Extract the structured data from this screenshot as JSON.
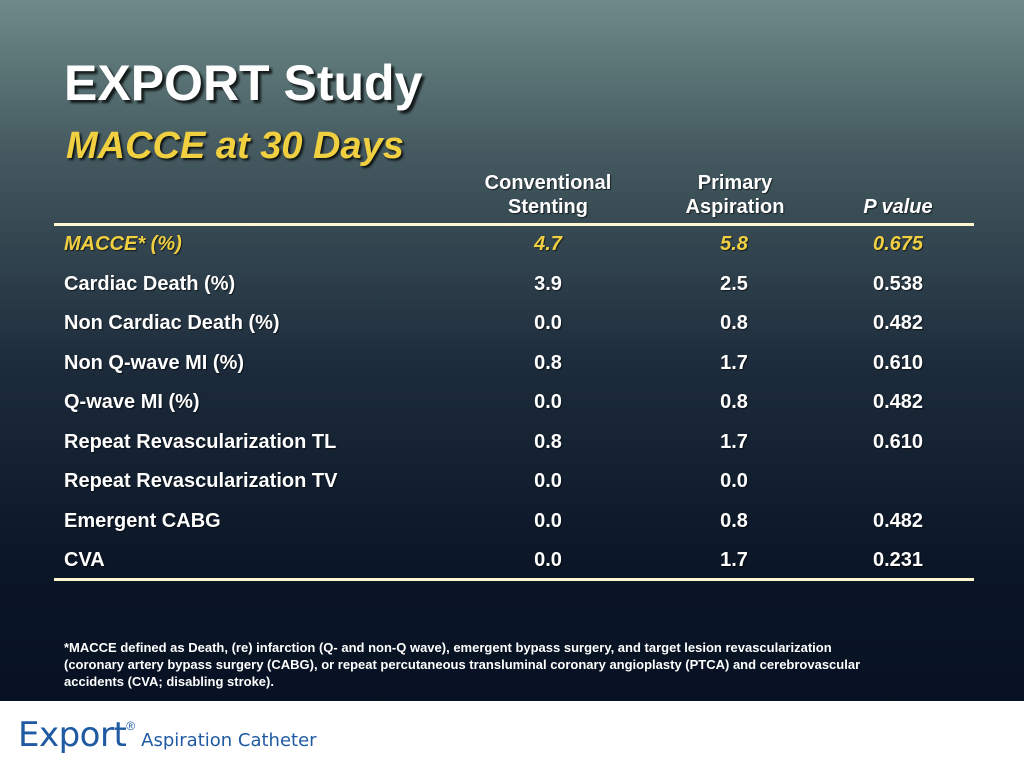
{
  "slide": {
    "title": "EXPORT Study",
    "subtitle": "MACCE at 30 Days"
  },
  "table": {
    "headers": {
      "conventional_line1": "Conventional",
      "conventional_line2": "Stenting",
      "aspiration_line1": "Primary",
      "aspiration_line2": "Aspiration",
      "pvalue": "P value"
    },
    "rows": [
      {
        "label": "MACCE* (%)",
        "conventional": "4.7",
        "aspiration": "5.8",
        "p": "0.675"
      },
      {
        "label": "Cardiac Death (%)",
        "conventional": "3.9",
        "aspiration": "2.5",
        "p": "0.538"
      },
      {
        "label": "Non Cardiac Death (%)",
        "conventional": "0.0",
        "aspiration": "0.8",
        "p": "0.482"
      },
      {
        "label": "Non Q-wave MI (%)",
        "conventional": "0.8",
        "aspiration": "1.7",
        "p": "0.610"
      },
      {
        "label": "Q-wave MI (%)",
        "conventional": "0.0",
        "aspiration": "0.8",
        "p": "0.482"
      },
      {
        "label": "Repeat Revascularization TL",
        "conventional": "0.8",
        "aspiration": "1.7",
        "p": "0.610"
      },
      {
        "label": "Repeat Revascularization TV",
        "conventional": "0.0",
        "aspiration": "0.0",
        "p": ""
      },
      {
        "label": "Emergent CABG",
        "conventional": "0.0",
        "aspiration": "0.8",
        "p": "0.482"
      },
      {
        "label": "CVA",
        "conventional": "0.0",
        "aspiration": "1.7",
        "p": "0.231"
      }
    ]
  },
  "footnote": {
    "line1": "*MACCE defined as Death, (re) infarction (Q- and non-Q wave), emergent bypass surgery, and target lesion revascularization",
    "line2": "(coronary artery bypass surgery (CABG), or repeat percutaneous transluminal coronary angioplasty (PTCA) and cerebrovascular",
    "line3": "accidents (CVA; disabling stroke)."
  },
  "footer": {
    "logo_word": "Export",
    "logo_reg": "®",
    "logo_tagline": "Aspiration Catheter"
  },
  "colors": {
    "accent_yellow": "#f0d040",
    "rule": "#fff7d0",
    "logo_blue": "#1f5aa3"
  }
}
